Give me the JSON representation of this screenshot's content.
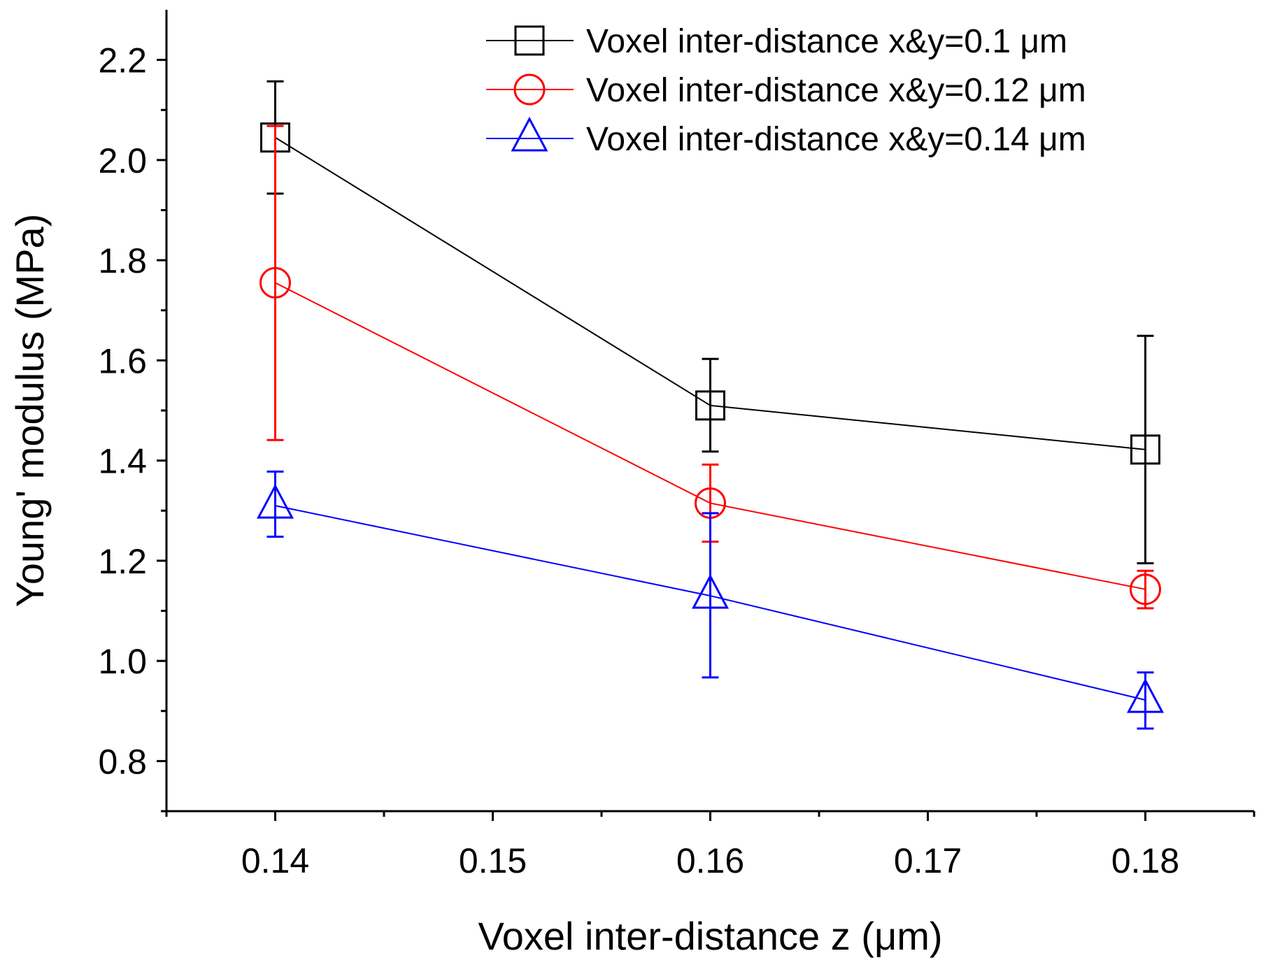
{
  "chart_data": {
    "type": "line",
    "title": "",
    "xlabel": "Voxel inter-distance z (μm)",
    "ylabel": "Young' modulus (MPa)",
    "x": [
      0.14,
      0.16,
      0.18
    ],
    "xlim": [
      0.135,
      0.185
    ],
    "ylim": [
      0.7,
      2.3
    ],
    "xticks": [
      0.14,
      0.15,
      0.16,
      0.17,
      0.18
    ],
    "xtick_labels": [
      "0.14",
      "0.15",
      "0.16",
      "0.17",
      "0.18"
    ],
    "yticks": [
      0.8,
      1.0,
      1.2,
      1.4,
      1.6,
      1.8,
      2.0,
      2.2
    ],
    "ytick_labels": [
      "0.8",
      "1.0",
      "1.2",
      "1.4",
      "1.6",
      "1.8",
      "2.0",
      "2.2"
    ],
    "grid": false,
    "legend_position": "top-right",
    "series": [
      {
        "name": "Voxel inter-distance x&y=0.1 μm",
        "marker": "square",
        "color": "#000000",
        "values": [
          2.045,
          1.51,
          1.422
        ],
        "err_low": [
          1.933,
          1.418,
          1.195
        ],
        "err_high": [
          2.157,
          1.603,
          1.649
        ]
      },
      {
        "name": "Voxel inter-distance x&y=0.12 μm",
        "marker": "circle",
        "color": "#ff0000",
        "values": [
          1.755,
          1.315,
          1.143
        ],
        "err_low": [
          1.441,
          1.238,
          1.105
        ],
        "err_high": [
          2.068,
          1.392,
          1.18
        ]
      },
      {
        "name": "Voxel inter-distance x&y=0.14 μm",
        "marker": "triangle",
        "color": "#0000ff",
        "values": [
          1.31,
          1.13,
          0.922
        ],
        "err_low": [
          1.248,
          0.967,
          0.865
        ],
        "err_high": [
          1.378,
          1.295,
          0.977
        ]
      }
    ]
  }
}
